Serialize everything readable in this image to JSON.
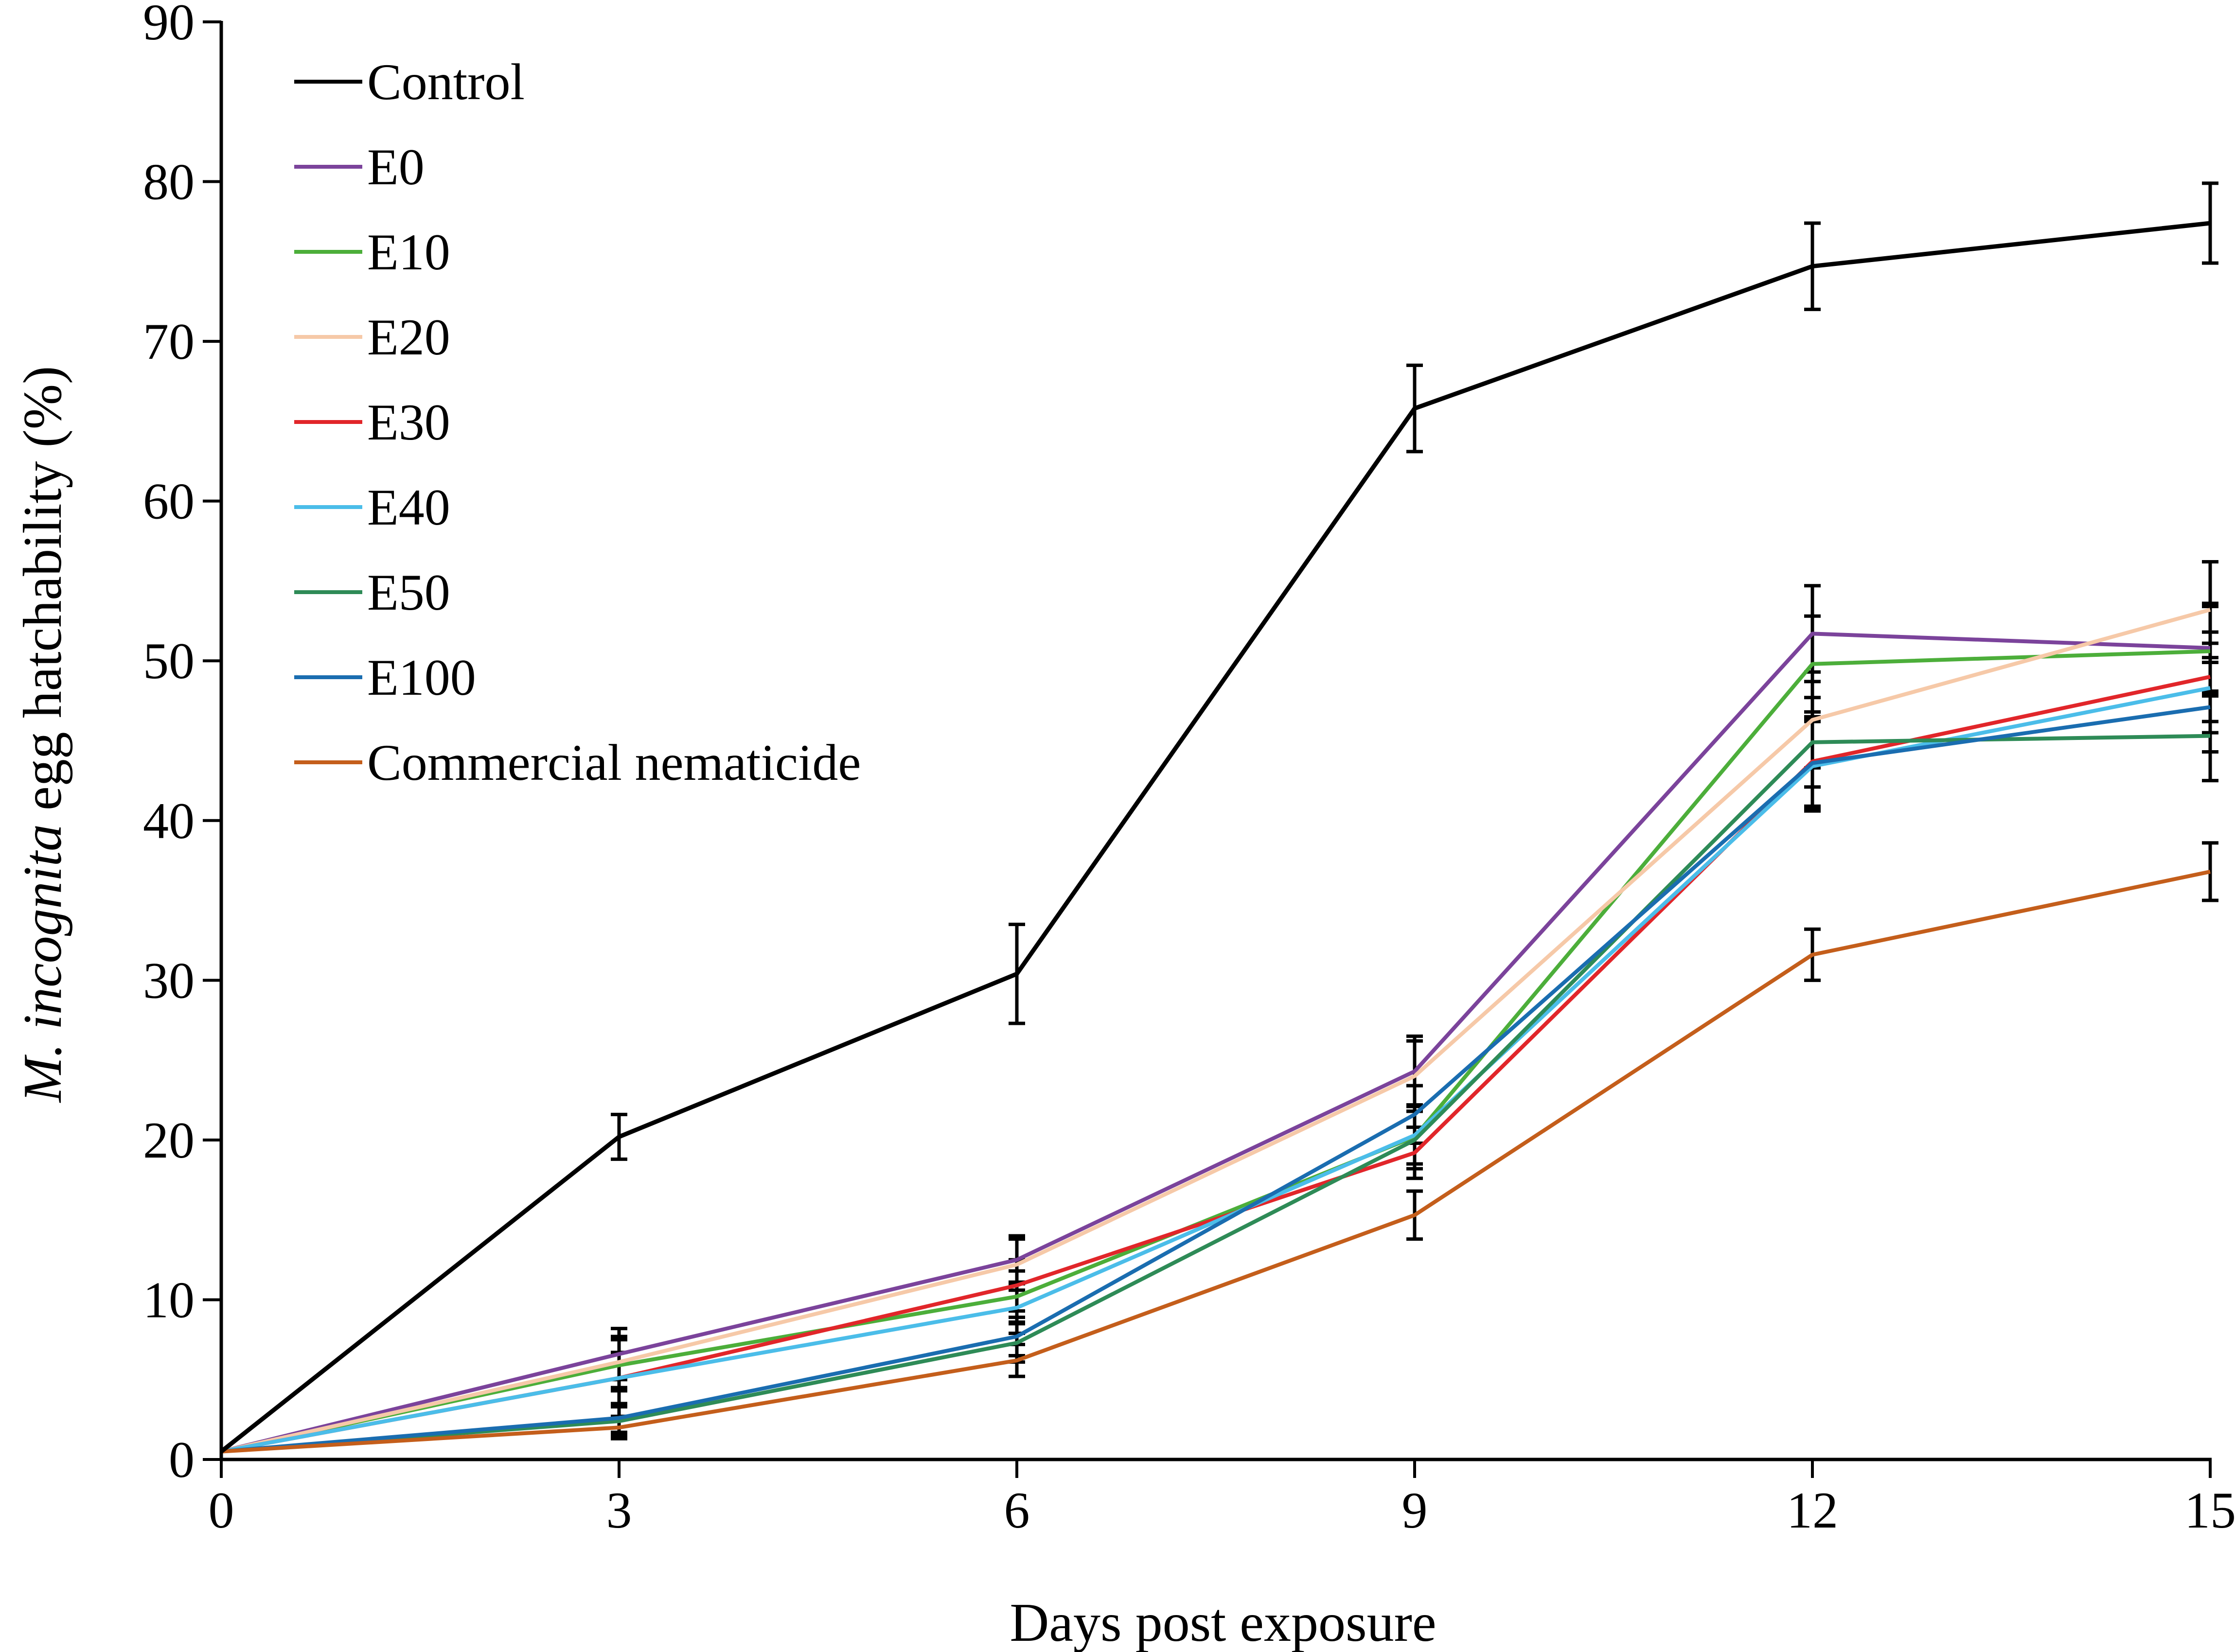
{
  "chart_data": {
    "type": "line",
    "title": "",
    "xlabel": "Days post exposure",
    "ylabel": {
      "italic": "M. incognita",
      "rest": " egg hatchability (%)"
    },
    "x": [
      0,
      3,
      6,
      9,
      12,
      15
    ],
    "xlim": [
      0,
      15
    ],
    "ylim": [
      0,
      90
    ],
    "xticks": [
      0,
      3,
      6,
      9,
      12,
      15
    ],
    "yticks": [
      0,
      10,
      20,
      30,
      40,
      50,
      60,
      70,
      80,
      90
    ],
    "grid": false,
    "legend_position": "top-left",
    "series": [
      {
        "name": "Control",
        "color": "#000000",
        "values": [
          0.5,
          20.2,
          30.4,
          65.8,
          74.7,
          77.4
        ],
        "errors": [
          0,
          1.4,
          3.1,
          2.7,
          2.7,
          2.5
        ]
      },
      {
        "name": "E0",
        "color": "#7B439B",
        "values": [
          0.5,
          6.6,
          12.5,
          24.3,
          51.7,
          50.8
        ],
        "errors": [
          0,
          1.6,
          1.5,
          2.2,
          3.0,
          2.8
        ]
      },
      {
        "name": "E10",
        "color": "#4CAE3A",
        "values": [
          0.5,
          5.9,
          10.2,
          20.2,
          49.8,
          50.6
        ],
        "errors": [
          0,
          1.6,
          1.6,
          2.0,
          3.0,
          2.8
        ]
      },
      {
        "name": "E20",
        "color": "#F6C9A8",
        "values": [
          0.5,
          6.1,
          12.2,
          24.0,
          46.3,
          53.2
        ],
        "errors": [
          0,
          1.6,
          1.6,
          2.2,
          3.0,
          3.0
        ]
      },
      {
        "name": "E30",
        "color": "#E1262A",
        "values": [
          0.5,
          5.1,
          10.9,
          19.2,
          43.7,
          49.0
        ],
        "errors": [
          0,
          1.6,
          1.6,
          1.6,
          2.8,
          2.8
        ]
      },
      {
        "name": "E40",
        "color": "#4BBDE9",
        "values": [
          0.5,
          5.1,
          9.5,
          20.3,
          43.4,
          48.3
        ],
        "errors": [
          0,
          1.6,
          1.6,
          1.8,
          2.8,
          2.8
        ]
      },
      {
        "name": "E50",
        "color": "#2E8B57",
        "values": [
          0.5,
          2.4,
          7.3,
          20.0,
          44.9,
          45.3
        ],
        "errors": [
          0,
          0.9,
          1.2,
          1.8,
          2.8,
          2.8
        ]
      },
      {
        "name": "E100",
        "color": "#1A6DB0",
        "values": [
          0.5,
          2.6,
          7.7,
          21.6,
          43.6,
          47.1
        ],
        "errors": [
          0,
          0.9,
          1.2,
          1.8,
          2.8,
          2.8
        ]
      },
      {
        "name": "Commercial nematicide",
        "color": "#C45E1B",
        "values": [
          0.5,
          2.0,
          6.2,
          15.3,
          31.6,
          36.8
        ],
        "errors": [
          0,
          0.7,
          1.0,
          1.5,
          1.6,
          1.8
        ]
      }
    ]
  }
}
